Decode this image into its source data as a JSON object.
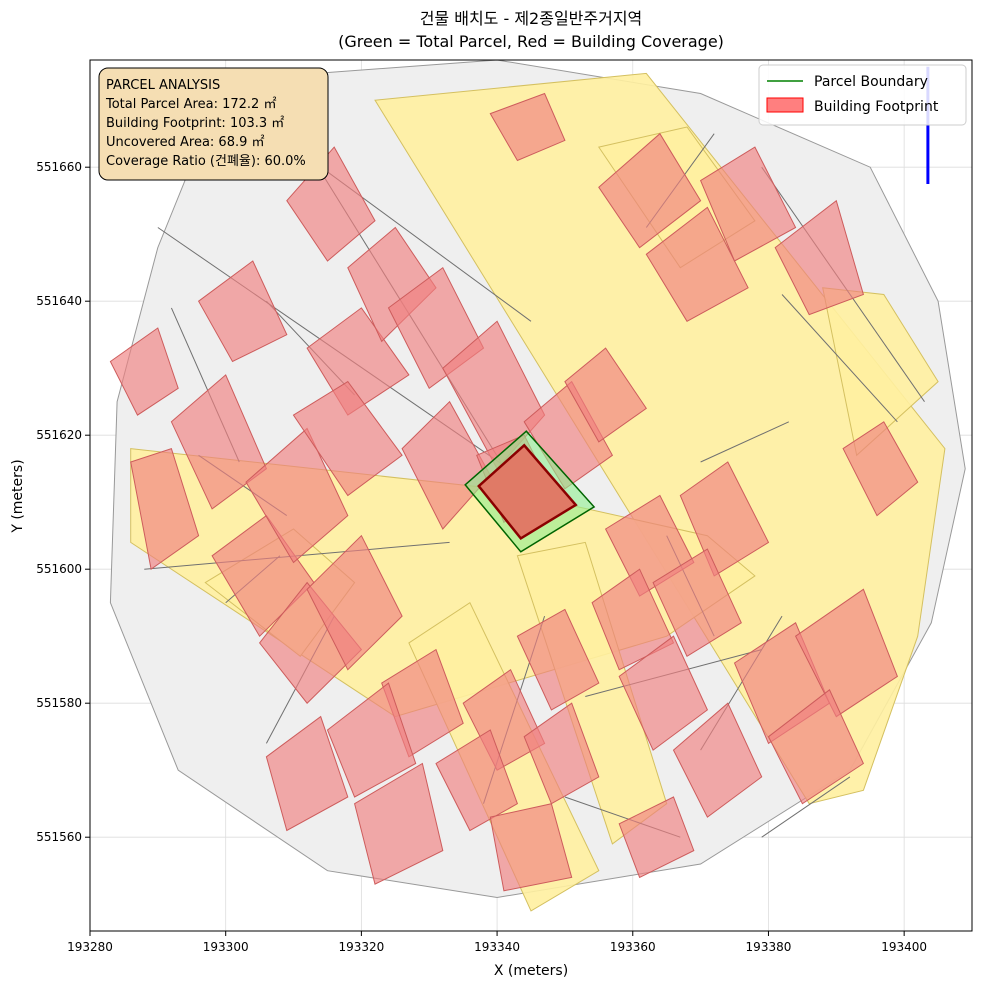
{
  "title": {
    "line1": "건물 배치도 - 제2종일반주거지역",
    "line2": "(Green = Total Parcel, Red = Building Coverage)"
  },
  "axes": {
    "xlabel": "X (meters)",
    "ylabel": "Y (meters)",
    "xlim": [
      193280,
      193410
    ],
    "ylim": [
      551546,
      551676
    ],
    "xticks": [
      193280,
      193300,
      193320,
      193340,
      193360,
      193380,
      193400
    ],
    "yticks": [
      551560,
      551580,
      551600,
      551620,
      551640,
      551660
    ],
    "grid": true
  },
  "info_box": {
    "title": "PARCEL ANALYSIS",
    "total_parcel_area": "Total Parcel Area: 172.2 ㎡",
    "building_footprint": "Building Footprint: 103.3 ㎡",
    "uncovered_area": "Uncovered Area: 68.9 ㎡",
    "coverage_ratio": "Coverage Ratio (건폐율): 60.0%",
    "background_color": "#f5deb3"
  },
  "legend": {
    "placement": "top-right",
    "items": [
      {
        "label": "Parcel Boundary",
        "color": "#008000",
        "kind": "line"
      },
      {
        "label": "Building Footprint",
        "color": "#ff0000",
        "kind": "patch"
      }
    ]
  },
  "colors": {
    "parcel_fill": "#90ee90",
    "parcel_edge": "#006400",
    "building_fill": "#e07a66",
    "building_edge": "#8b0000",
    "context_building_fill": "#f08080",
    "context_building_edge": "#cd5c5c",
    "road_fill": "#fff0a0",
    "road_edge": "#d4c060",
    "lot_fill": "#efefef",
    "lot_edge": "#707070",
    "north_arrow": "#0000ff"
  },
  "map_data": {
    "study_area": [
      [
        193300,
        551673
      ],
      [
        193340,
        551676
      ],
      [
        193370,
        551671
      ],
      [
        193395,
        551660
      ],
      [
        193405,
        551640
      ],
      [
        193409,
        551615
      ],
      [
        193404,
        551592
      ],
      [
        193392,
        551570
      ],
      [
        193370,
        551556
      ],
      [
        193340,
        551551
      ],
      [
        193315,
        551555
      ],
      [
        193293,
        551570
      ],
      [
        193283,
        551595
      ],
      [
        193284,
        551625
      ],
      [
        193290,
        551648
      ]
    ],
    "subject_parcel": [
      [
        193335.3,
        551612.6
      ],
      [
        193344.3,
        551620.6
      ],
      [
        193354.3,
        551609.3
      ],
      [
        193343.5,
        551602.6
      ]
    ],
    "subject_building": [
      [
        193337.3,
        551612.4
      ],
      [
        193344.0,
        551618.5
      ],
      [
        193351.6,
        551609.6
      ],
      [
        193343.5,
        551604.6
      ]
    ],
    "roads": [
      [
        [
          193322,
          551670
        ],
        [
          193362,
          551674
        ],
        [
          193406,
          551618
        ],
        [
          193402,
          551590
        ],
        [
          193394,
          551567
        ],
        [
          193386,
          551565
        ]
      ],
      [
        [
          193286,
          551618
        ],
        [
          193340,
          551612
        ],
        [
          193371,
          551605
        ],
        [
          193378,
          551599
        ],
        [
          193365,
          551590
        ],
        [
          193325,
          551578
        ],
        [
          193286,
          551604
        ]
      ],
      [
        [
          193297,
          551598
        ],
        [
          193310,
          551606
        ],
        [
          193319,
          551598
        ],
        [
          193311,
          551587
        ]
      ],
      [
        [
          193327,
          551589
        ],
        [
          193336,
          551595
        ],
        [
          193355,
          551555
        ],
        [
          193345,
          551549
        ]
      ],
      [
        [
          193343,
          551602
        ],
        [
          193353,
          551604
        ],
        [
          193365,
          551565
        ],
        [
          193357,
          551559
        ]
      ],
      [
        [
          193355,
          551663
        ],
        [
          193368,
          551666
        ],
        [
          193378,
          551652
        ],
        [
          193367,
          551645
        ]
      ],
      [
        [
          193388,
          551642
        ],
        [
          193397,
          551641
        ],
        [
          193405,
          551628
        ],
        [
          193393,
          551617
        ]
      ]
    ],
    "context_buildings": [
      [
        [
          193286,
          551616
        ],
        [
          193292,
          551618
        ],
        [
          193296,
          551605
        ],
        [
          193289,
          551600
        ]
      ],
      [
        [
          193292,
          551622
        ],
        [
          193300,
          551629
        ],
        [
          193306,
          551615
        ],
        [
          193298,
          551609
        ]
      ],
      [
        [
          193298,
          551602
        ],
        [
          193306,
          551608
        ],
        [
          193313,
          551598
        ],
        [
          193305,
          551590
        ]
      ],
      [
        [
          193303,
          551613
        ],
        [
          193312,
          551621
        ],
        [
          193318,
          551608
        ],
        [
          193310,
          551601
        ]
      ],
      [
        [
          193305,
          551589
        ],
        [
          193312,
          551598
        ],
        [
          193320,
          551588
        ],
        [
          193312,
          551580
        ]
      ],
      [
        [
          193312,
          551597
        ],
        [
          193320,
          551605
        ],
        [
          193326,
          551593
        ],
        [
          193318,
          551585
        ]
      ],
      [
        [
          193312,
          551633
        ],
        [
          193320,
          551639
        ],
        [
          193327,
          551629
        ],
        [
          193318,
          551623
        ]
      ],
      [
        [
          193310,
          551623
        ],
        [
          193318,
          551628
        ],
        [
          193326,
          551617
        ],
        [
          193318,
          551611
        ]
      ],
      [
        [
          193318,
          551645
        ],
        [
          193325,
          551651
        ],
        [
          193331,
          551642
        ],
        [
          193323,
          551634
        ]
      ],
      [
        [
          193324,
          551639
        ],
        [
          193332,
          551645
        ],
        [
          193338,
          551633
        ],
        [
          193330,
          551627
        ]
      ],
      [
        [
          193326,
          551618
        ],
        [
          193333,
          551625
        ],
        [
          193339,
          551614
        ],
        [
          193332,
          551606
        ]
      ],
      [
        [
          193332,
          551630
        ],
        [
          193340,
          551637
        ],
        [
          193347,
          551623
        ],
        [
          193340,
          551615
        ]
      ],
      [
        [
          193337,
          551617
        ],
        [
          193344,
          551620
        ],
        [
          193348,
          551612
        ],
        [
          193341,
          551607
        ]
      ],
      [
        [
          193344,
          551622
        ],
        [
          193351,
          551628
        ],
        [
          193357,
          551617
        ],
        [
          193350,
          551612
        ]
      ],
      [
        [
          193350,
          551628
        ],
        [
          193356,
          551633
        ],
        [
          193362,
          551624
        ],
        [
          193355,
          551619
        ]
      ],
      [
        [
          193309,
          551655
        ],
        [
          193316,
          551663
        ],
        [
          193322,
          551652
        ],
        [
          193315,
          551646
        ]
      ],
      [
        [
          193296,
          551640
        ],
        [
          193304,
          551646
        ],
        [
          193309,
          551635
        ],
        [
          193301,
          551631
        ]
      ],
      [
        [
          193339,
          551668
        ],
        [
          193347,
          551671
        ],
        [
          193350,
          551664
        ],
        [
          193343,
          551661
        ]
      ],
      [
        [
          193355,
          551657
        ],
        [
          193364,
          551665
        ],
        [
          193370,
          551655
        ],
        [
          193361,
          551648
        ]
      ],
      [
        [
          193362,
          551647
        ],
        [
          193371,
          551654
        ],
        [
          193377,
          551642
        ],
        [
          193368,
          551637
        ]
      ],
      [
        [
          193370,
          551658
        ],
        [
          193378,
          551663
        ],
        [
          193384,
          551651
        ],
        [
          193375,
          551646
        ]
      ],
      [
        [
          193381,
          551648
        ],
        [
          193390,
          551655
        ],
        [
          193394,
          551641
        ],
        [
          193386,
          551638
        ]
      ],
      [
        [
          193356,
          551606
        ],
        [
          193364,
          551611
        ],
        [
          193369,
          551601
        ],
        [
          193361,
          551596
        ]
      ],
      [
        [
          193367,
          551611
        ],
        [
          193374,
          551616
        ],
        [
          193380,
          551604
        ],
        [
          193372,
          551599
        ]
      ],
      [
        [
          193354,
          551595
        ],
        [
          193361,
          551600
        ],
        [
          193366,
          551589
        ],
        [
          193358,
          551585
        ]
      ],
      [
        [
          193363,
          551598
        ],
        [
          193371,
          551603
        ],
        [
          193376,
          551592
        ],
        [
          193368,
          551587
        ]
      ],
      [
        [
          193343,
          551590
        ],
        [
          193350,
          551594
        ],
        [
          193355,
          551583
        ],
        [
          193348,
          551579
        ]
      ],
      [
        [
          193335,
          551580
        ],
        [
          193342,
          551585
        ],
        [
          193347,
          551574
        ],
        [
          193340,
          551570
        ]
      ],
      [
        [
          193344,
          551575
        ],
        [
          193351,
          551580
        ],
        [
          193355,
          551569
        ],
        [
          193348,
          551565
        ]
      ],
      [
        [
          193331,
          551571
        ],
        [
          193339,
          551576
        ],
        [
          193343,
          551565
        ],
        [
          193336,
          551561
        ]
      ],
      [
        [
          193323,
          551583
        ],
        [
          193331,
          551588
        ],
        [
          193335,
          551577
        ],
        [
          193327,
          551572
        ]
      ],
      [
        [
          193315,
          551576
        ],
        [
          193324,
          551583
        ],
        [
          193328,
          551571
        ],
        [
          193319,
          551566
        ]
      ],
      [
        [
          193306,
          551572
        ],
        [
          193314,
          551578
        ],
        [
          193318,
          551566
        ],
        [
          193309,
          551561
        ]
      ],
      [
        [
          193319,
          551565
        ],
        [
          193329,
          551571
        ],
        [
          193332,
          551558
        ],
        [
          193322,
          551553
        ]
      ],
      [
        [
          193339,
          551563
        ],
        [
          193348,
          551565
        ],
        [
          193351,
          551554
        ],
        [
          193341,
          551552
        ]
      ],
      [
        [
          193358,
          551584
        ],
        [
          193366,
          551590
        ],
        [
          193371,
          551579
        ],
        [
          193363,
          551573
        ]
      ],
      [
        [
          193366,
          551573
        ],
        [
          193374,
          551580
        ],
        [
          193379,
          551569
        ],
        [
          193371,
          551563
        ]
      ],
      [
        [
          193375,
          551586
        ],
        [
          193384,
          551592
        ],
        [
          193389,
          551580
        ],
        [
          193380,
          551574
        ]
      ],
      [
        [
          193384,
          551590
        ],
        [
          193394,
          551597
        ],
        [
          193399,
          551584
        ],
        [
          193390,
          551578
        ]
      ],
      [
        [
          193380,
          551575
        ],
        [
          193389,
          551582
        ],
        [
          193394,
          551571
        ],
        [
          193385,
          551565
        ]
      ],
      [
        [
          193358,
          551562
        ],
        [
          193366,
          551566
        ],
        [
          193369,
          551558
        ],
        [
          193361,
          551554
        ]
      ],
      [
        [
          193391,
          551618
        ],
        [
          193397,
          551622
        ],
        [
          193402,
          551613
        ],
        [
          193396,
          551608
        ]
      ],
      [
        [
          193283,
          551631
        ],
        [
          193290,
          551636
        ],
        [
          193293,
          551627
        ],
        [
          193287,
          551623
        ]
      ]
    ],
    "lot_lines": [
      [
        [
          193290,
          551651
        ],
        [
          193346,
          551612
        ]
      ],
      [
        [
          193306,
          551666
        ],
        [
          193345,
          551637
        ]
      ],
      [
        [
          193313,
          551661
        ],
        [
          193343,
          551612
        ]
      ],
      [
        [
          193292,
          551639
        ],
        [
          193302,
          551616
        ]
      ],
      [
        [
          193306,
          551640
        ],
        [
          193319,
          551626
        ]
      ],
      [
        [
          193296,
          551617
        ],
        [
          193309,
          551608
        ]
      ],
      [
        [
          193288,
          551600
        ],
        [
          193333,
          551604
        ]
      ],
      [
        [
          193300,
          551595
        ],
        [
          193308,
          551602
        ]
      ],
      [
        [
          193316,
          551593
        ],
        [
          193306,
          551574
        ]
      ],
      [
        [
          193347,
          551593
        ],
        [
          193338,
          551565
        ]
      ],
      [
        [
          193365,
          551605
        ],
        [
          193372,
          551590
        ]
      ],
      [
        [
          193370,
          551573
        ],
        [
          193382,
          551593
        ]
      ],
      [
        [
          193353,
          551581
        ],
        [
          193379,
          551588
        ]
      ],
      [
        [
          193362,
          551651
        ],
        [
          193372,
          551665
        ]
      ],
      [
        [
          193379,
          551660
        ],
        [
          193403,
          551625
        ]
      ],
      [
        [
          193370,
          551616
        ],
        [
          193383,
          551622
        ]
      ],
      [
        [
          193382,
          551641
        ],
        [
          193399,
          551622
        ]
      ],
      [
        [
          193392,
          551569
        ],
        [
          193379,
          551560
        ]
      ],
      [
        [
          193350,
          551566
        ],
        [
          193367,
          551560
        ]
      ]
    ],
    "north_arrow": {
      "x": 193403.5,
      "y1": 551657.5,
      "y2": 551675
    }
  }
}
